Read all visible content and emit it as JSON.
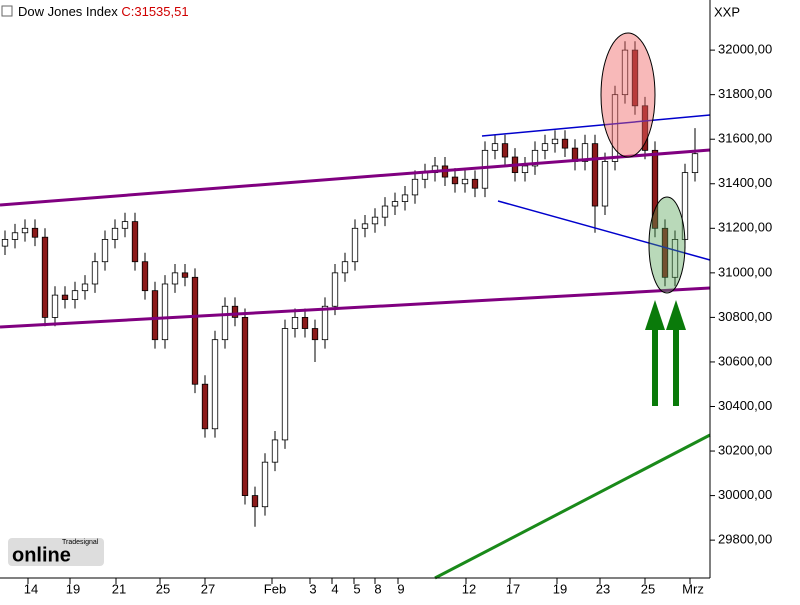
{
  "chart_data": {
    "type": "candlestick",
    "title": "Dow Jones Index",
    "last_close_label": "C:31535,51",
    "axis_label": "XXP",
    "logo": {
      "brand": "Tradesignal",
      "name": "online"
    },
    "up_color": "#ffffff",
    "down_color": "#8b1a1a",
    "open": [
      31120,
      31150,
      31180,
      31200,
      31160,
      30800,
      30900,
      30880,
      30920,
      30950,
      31050,
      31150,
      31200,
      31230,
      31050,
      30920,
      30700,
      30950,
      31000,
      30980,
      30500,
      30300,
      30700,
      30850,
      30800,
      30000,
      29950,
      30150,
      30250,
      30750,
      30800,
      30750,
      30700,
      30850,
      31000,
      31050,
      31200,
      31220,
      31250,
      31300,
      31320,
      31350,
      31420,
      31450,
      31480,
      31430,
      31400,
      31420,
      31380,
      31550,
      31580,
      31520,
      31450,
      31480,
      31550,
      31580,
      31600,
      31560,
      31500,
      31580,
      31300,
      31500,
      31800,
      32000,
      31750,
      31550,
      31200,
      30980,
      31150,
      31450
    ],
    "high": [
      31190,
      31220,
      31240,
      31240,
      31200,
      30940,
      30940,
      30960,
      30990,
      31090,
      31190,
      31240,
      31270,
      31270,
      31090,
      30960,
      30990,
      31040,
      31040,
      31020,
      30540,
      30740,
      30890,
      30890,
      30840,
      30040,
      30190,
      30290,
      30790,
      30840,
      30840,
      30790,
      30890,
      31040,
      31090,
      31240,
      31260,
      31290,
      31340,
      31360,
      31390,
      31460,
      31490,
      31520,
      31520,
      31470,
      31460,
      31460,
      31590,
      31620,
      31620,
      31560,
      31520,
      31590,
      31620,
      31640,
      31640,
      31600,
      31620,
      31620,
      31540,
      31840,
      32040,
      32040,
      31790,
      31590,
      31240,
      31190,
      31490,
      31650
    ],
    "low": [
      31080,
      31110,
      31140,
      31120,
      30760,
      30760,
      30840,
      30840,
      30880,
      30910,
      31010,
      31110,
      31160,
      31010,
      30880,
      30660,
      30660,
      30910,
      30940,
      30460,
      30260,
      30260,
      30660,
      30760,
      29960,
      29860,
      29910,
      30110,
      30210,
      30710,
      30710,
      30600,
      30660,
      30810,
      30960,
      31010,
      31160,
      31180,
      31210,
      31260,
      31280,
      31310,
      31380,
      31410,
      31390,
      31360,
      31360,
      31340,
      31340,
      31510,
      31480,
      31410,
      31410,
      31440,
      31510,
      31540,
      31520,
      31460,
      31460,
      31180,
      31260,
      31460,
      31760,
      31710,
      31510,
      31160,
      30940,
      30940,
      31110,
      31410
    ],
    "close": [
      31150,
      31180,
      31200,
      31160,
      30800,
      30900,
      30880,
      30920,
      30950,
      31050,
      31150,
      31200,
      31230,
      31050,
      30920,
      30700,
      30950,
      31000,
      30980,
      30500,
      30300,
      30700,
      30850,
      30800,
      30000,
      29950,
      30150,
      30250,
      30750,
      30800,
      30750,
      30700,
      30850,
      31000,
      31050,
      31200,
      31220,
      31250,
      31300,
      31320,
      31350,
      31420,
      31450,
      31480,
      31430,
      31400,
      31420,
      31380,
      31550,
      31580,
      31520,
      31450,
      31480,
      31550,
      31580,
      31600,
      31560,
      31500,
      31580,
      31300,
      31500,
      31800,
      32000,
      31750,
      31550,
      31200,
      30980,
      31150,
      31450,
      31535
    ],
    "xlim": [
      -0.5,
      70.5
    ],
    "xticks": [
      {
        "value": 2.3,
        "label": "14"
      },
      {
        "value": 6.5,
        "label": "19"
      },
      {
        "value": 11.1,
        "label": "21"
      },
      {
        "value": 15.5,
        "label": "25"
      },
      {
        "value": 20,
        "label": "27"
      },
      {
        "value": 26.7,
        "label": "Feb"
      },
      {
        "value": 30.5,
        "label": "3"
      },
      {
        "value": 32.7,
        "label": "4"
      },
      {
        "value": 34.9,
        "label": "5"
      },
      {
        "value": 37,
        "label": "8"
      },
      {
        "value": 39.3,
        "label": "9"
      },
      {
        "value": 46.1,
        "label": "12"
      },
      {
        "value": 50.5,
        "label": "17"
      },
      {
        "value": 55.2,
        "label": "19"
      },
      {
        "value": 59.5,
        "label": "23"
      },
      {
        "value": 64,
        "label": "25"
      },
      {
        "value": 68.5,
        "label": "Mrz"
      }
    ],
    "ylim": [
      29630,
      32225
    ],
    "yticks": [
      {
        "value": 29800,
        "label": "29800,00"
      },
      {
        "value": 30000,
        "label": "30000,00"
      },
      {
        "value": 30200,
        "label": "30200,00"
      },
      {
        "value": 30400,
        "label": "30400,00"
      },
      {
        "value": 30600,
        "label": "30600,00"
      },
      {
        "value": 30800,
        "label": "30800,00"
      },
      {
        "value": 31000,
        "label": "31000,00"
      },
      {
        "value": 31200,
        "label": "31200,00"
      },
      {
        "value": 31400,
        "label": "31400,00"
      },
      {
        "value": 31600,
        "label": "31600,00"
      },
      {
        "value": 31800,
        "label": "31800,00"
      },
      {
        "value": 32000,
        "label": "32000,00"
      }
    ]
  }
}
